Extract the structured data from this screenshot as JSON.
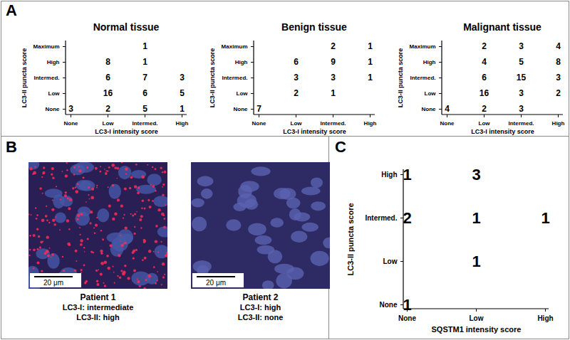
{
  "panel_labels": [
    "A",
    "B",
    "C"
  ],
  "chart_data": [
    {
      "type": "matrix",
      "title": "Normal tissue",
      "xlabel": "LC3-I intensity score",
      "ylabel": "LC3-II puncta score",
      "x": [
        "None",
        "Low",
        "Intermed.",
        "High"
      ],
      "y": [
        "None",
        "Low",
        "Intermed.",
        "High",
        "Maximum"
      ],
      "data_labels": true,
      "color": "#000000",
      "cells": [
        {
          "x": "Intermed.",
          "y": "Maximum",
          "value": 1
        },
        {
          "x": "Low",
          "y": "High",
          "value": 8
        },
        {
          "x": "Intermed.",
          "y": "High",
          "value": 1
        },
        {
          "x": "Low",
          "y": "Intermed.",
          "value": 6
        },
        {
          "x": "Intermed.",
          "y": "Intermed.",
          "value": 7
        },
        {
          "x": "High",
          "y": "Intermed.",
          "value": 3
        },
        {
          "x": "Low",
          "y": "Low",
          "value": 16
        },
        {
          "x": "Intermed.",
          "y": "Low",
          "value": 6
        },
        {
          "x": "High",
          "y": "Low",
          "value": 5
        },
        {
          "x": "None",
          "y": "None",
          "value": 3
        },
        {
          "x": "Low",
          "y": "None",
          "value": 2
        },
        {
          "x": "Intermed.",
          "y": "None",
          "value": 5
        },
        {
          "x": "High",
          "y": "None",
          "value": 1
        }
      ]
    },
    {
      "type": "matrix",
      "title": "Benign tissue",
      "xlabel": "LC3-I intensity score",
      "ylabel": "LC3-II puncta score",
      "x": [
        "None",
        "Low",
        "Intermed.",
        "High"
      ],
      "y": [
        "None",
        "Low",
        "Intermed.",
        "High",
        "Maximum"
      ],
      "data_labels": true,
      "color": "#000000",
      "cells": [
        {
          "x": "Intermed.",
          "y": "Maximum",
          "value": 2
        },
        {
          "x": "High",
          "y": "Maximum",
          "value": 1
        },
        {
          "x": "Low",
          "y": "High",
          "value": 6
        },
        {
          "x": "Intermed.",
          "y": "High",
          "value": 9
        },
        {
          "x": "High",
          "y": "High",
          "value": 1
        },
        {
          "x": "Low",
          "y": "Intermed.",
          "value": 3
        },
        {
          "x": "Intermed.",
          "y": "Intermed.",
          "value": 3
        },
        {
          "x": "High",
          "y": "Intermed.",
          "value": 1
        },
        {
          "x": "Low",
          "y": "Low",
          "value": 2
        },
        {
          "x": "Intermed.",
          "y": "Low",
          "value": 1
        },
        {
          "x": "None",
          "y": "None",
          "value": 7
        }
      ]
    },
    {
      "type": "matrix",
      "title": "Malignant tissue",
      "xlabel": "LC3-I intensity score",
      "ylabel": "LC3-II puncta score",
      "x": [
        "None",
        "Low",
        "Intermed.",
        "High"
      ],
      "y": [
        "None",
        "Low",
        "Intermed.",
        "High",
        "Maximum"
      ],
      "data_labels": true,
      "color": "#000000",
      "cells": [
        {
          "x": "Low",
          "y": "Maximum",
          "value": 2
        },
        {
          "x": "Intermed.",
          "y": "Maximum",
          "value": 3
        },
        {
          "x": "High",
          "y": "Maximum",
          "value": 4
        },
        {
          "x": "Low",
          "y": "High",
          "value": 4
        },
        {
          "x": "Intermed.",
          "y": "High",
          "value": 5
        },
        {
          "x": "High",
          "y": "High",
          "value": 8
        },
        {
          "x": "Low",
          "y": "Intermed.",
          "value": 6
        },
        {
          "x": "Intermed.",
          "y": "Intermed.",
          "value": 15
        },
        {
          "x": "High",
          "y": "Intermed.",
          "value": 3
        },
        {
          "x": "Low",
          "y": "Low",
          "value": 16
        },
        {
          "x": "Intermed.",
          "y": "Low",
          "value": 3
        },
        {
          "x": "High",
          "y": "Low",
          "value": 2
        },
        {
          "x": "None",
          "y": "None",
          "value": 4
        },
        {
          "x": "Low",
          "y": "None",
          "value": 2
        },
        {
          "x": "Intermed.",
          "y": "None",
          "value": 3
        }
      ]
    },
    {
      "type": "matrix",
      "xlabel": "SQSTM1 intensity score",
      "ylabel": "LC3-II puncta score",
      "x": [
        "None",
        "Low",
        "High"
      ],
      "y": [
        "None",
        "Low",
        "Intermed.",
        "High"
      ],
      "data_labels": true,
      "color": "#000000",
      "cells": [
        {
          "x": "None",
          "y": "High",
          "value": 1
        },
        {
          "x": "Low",
          "y": "High",
          "value": 3
        },
        {
          "x": "None",
          "y": "Intermed.",
          "value": 2
        },
        {
          "x": "Low",
          "y": "Intermed.",
          "value": 1
        },
        {
          "x": "High",
          "y": "Intermed.",
          "value": 1
        },
        {
          "x": "Low",
          "y": "Low",
          "value": 1
        },
        {
          "x": "None",
          "y": "None",
          "value": 1
        }
      ]
    }
  ],
  "images": [
    {
      "scale_bar": "20 μm",
      "caption": "Patient 1",
      "details": [
        "LC3-I: intermediate",
        "LC3-II: high"
      ],
      "puncta": true
    },
    {
      "scale_bar": "20 μm",
      "caption": "Patient 2",
      "details": [
        "LC3-I: high",
        "LC3-II: none"
      ],
      "puncta": false
    }
  ]
}
